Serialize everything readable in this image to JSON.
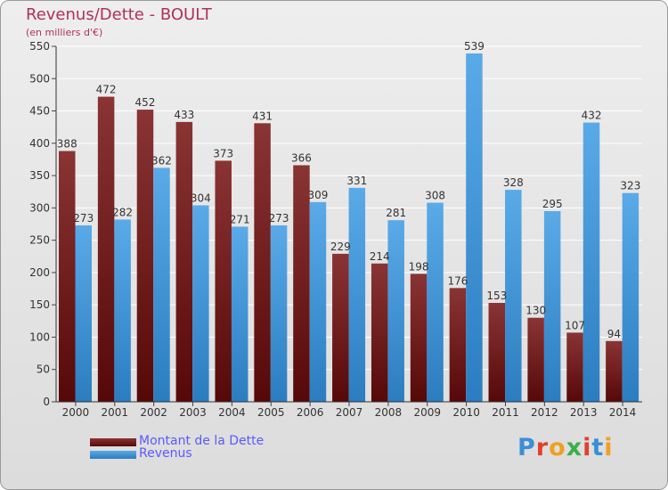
{
  "header": {
    "title": "Revenus/Dette - BOULT",
    "subtitle": "(en milliers d'€)"
  },
  "legend": {
    "debt_label": "Montant de la Dette",
    "revenue_label": "Revenus"
  },
  "logo": {
    "text": "Proxiti",
    "letter_colors": [
      "#3a8fd6",
      "#e0402f",
      "#f0a020",
      "#3ab04a",
      "#e0402f",
      "#3a8fd6",
      "#f0a020"
    ]
  },
  "colors": {
    "debt_top": "#8a3434",
    "debt_bottom": "#560808",
    "revenue_top": "#5aaae8",
    "revenue_bottom": "#2b7dc0",
    "title": "#b0305a"
  },
  "chart_data": {
    "type": "bar",
    "categories": [
      "2000",
      "2001",
      "2002",
      "2003",
      "2004",
      "2005",
      "2006",
      "2007",
      "2008",
      "2009",
      "2010",
      "2011",
      "2012",
      "2013",
      "2014"
    ],
    "series": [
      {
        "name": "Montant de la Dette",
        "values": [
          388,
          472,
          452,
          433,
          373,
          431,
          366,
          229,
          214,
          198,
          176,
          153,
          130,
          107,
          94
        ]
      },
      {
        "name": "Revenus",
        "values": [
          273,
          282,
          362,
          304,
          271,
          273,
          309,
          331,
          281,
          308,
          539,
          328,
          295,
          432,
          323
        ]
      }
    ],
    "yticks": [
      0,
      50,
      100,
      150,
      200,
      250,
      300,
      350,
      400,
      450,
      500,
      550
    ],
    "ylim": [
      0,
      550
    ],
    "grid": true,
    "legend_position": "bottom-left"
  }
}
